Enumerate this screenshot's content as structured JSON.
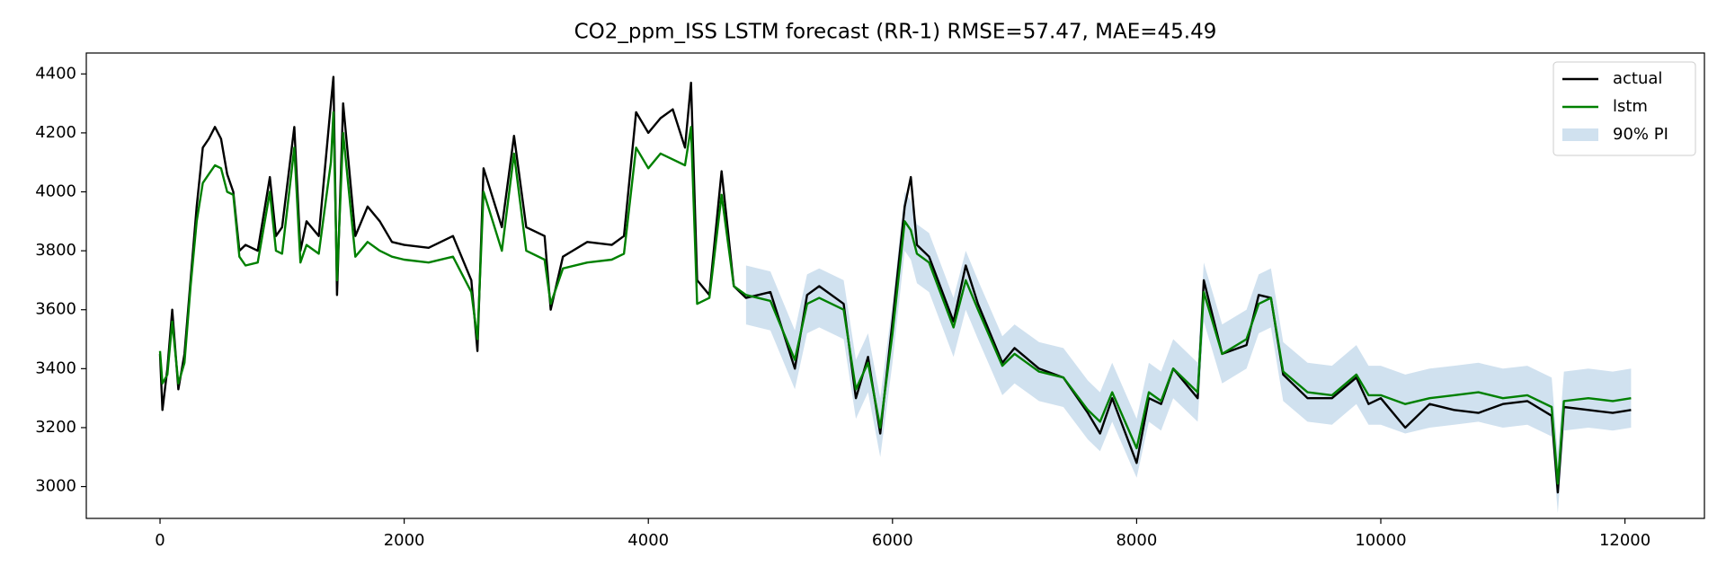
{
  "chart_data": {
    "type": "line",
    "title": "CO2_ppm_ISS LSTM forecast (RR-1)  RMSE=57.47, MAE=45.49",
    "x": [
      0,
      20,
      60,
      100,
      150,
      200,
      250,
      300,
      350,
      400,
      450,
      500,
      550,
      600,
      650,
      700,
      800,
      900,
      950,
      1000,
      1100,
      1150,
      1200,
      1300,
      1400,
      1420,
      1450,
      1500,
      1600,
      1700,
      1800,
      1900,
      2000,
      2200,
      2400,
      2550,
      2600,
      2650,
      2800,
      2900,
      3000,
      3150,
      3200,
      3300,
      3500,
      3700,
      3800,
      3900,
      4000,
      4100,
      4200,
      4300,
      4350,
      4400,
      4500,
      4600,
      4700,
      4800,
      5000,
      5200,
      5300,
      5400,
      5600,
      5700,
      5800,
      5900,
      6000,
      6100,
      6150,
      6200,
      6300,
      6500,
      6600,
      6700,
      6900,
      7000,
      7200,
      7400,
      7600,
      7700,
      7800,
      8000,
      8100,
      8200,
      8300,
      8500,
      8550,
      8700,
      8900,
      9000,
      9100,
      9200,
      9400,
      9600,
      9800,
      9900,
      10000,
      10200,
      10400,
      10600,
      10800,
      11000,
      11200,
      11400,
      11450,
      11500,
      11700,
      11900,
      12050
    ],
    "series": [
      {
        "name": "actual",
        "color": "#000000",
        "values": [
          3450,
          3260,
          3400,
          3600,
          3330,
          3450,
          3700,
          3950,
          4150,
          4180,
          4220,
          4180,
          4060,
          4000,
          3800,
          3820,
          3800,
          4050,
          3850,
          3880,
          4220,
          3800,
          3900,
          3850,
          4300,
          4390,
          3650,
          4300,
          3850,
          3950,
          3900,
          3830,
          3820,
          3810,
          3850,
          3700,
          3460,
          4080,
          3880,
          4190,
          3880,
          3850,
          3600,
          3780,
          3830,
          3820,
          3850,
          4270,
          4200,
          4250,
          4280,
          4150,
          4370,
          3700,
          3650,
          4070,
          3680,
          3640,
          3660,
          3400,
          3650,
          3680,
          3620,
          3300,
          3440,
          3180,
          3560,
          3950,
          4050,
          3820,
          3780,
          3560,
          3750,
          3620,
          3420,
          3470,
          3400,
          3370,
          3250,
          3180,
          3300,
          3080,
          3300,
          3280,
          3400,
          3300,
          3700,
          3450,
          3480,
          3650,
          3640,
          3380,
          3300,
          3300,
          3370,
          3280,
          3300,
          3200,
          3280,
          3260,
          3250,
          3280,
          3290,
          3240,
          2980,
          3270,
          3260,
          3250,
          3260
        ]
      },
      {
        "name": "lstm",
        "color": "#008000",
        "values": [
          3460,
          3350,
          3380,
          3560,
          3350,
          3420,
          3680,
          3900,
          4030,
          4060,
          4090,
          4080,
          4000,
          3990,
          3780,
          3750,
          3760,
          4000,
          3800,
          3790,
          4150,
          3760,
          3820,
          3790,
          4100,
          4270,
          3700,
          4200,
          3780,
          3830,
          3800,
          3780,
          3770,
          3760,
          3780,
          3660,
          3500,
          4000,
          3800,
          4130,
          3800,
          3770,
          3620,
          3740,
          3760,
          3770,
          3790,
          4150,
          4080,
          4130,
          4110,
          4090,
          4220,
          3620,
          3640,
          3990,
          3680,
          3650,
          3630,
          3430,
          3620,
          3640,
          3600,
          3330,
          3420,
          3200,
          3520,
          3900,
          3870,
          3790,
          3760,
          3540,
          3700,
          3600,
          3410,
          3450,
          3390,
          3370,
          3260,
          3220,
          3320,
          3130,
          3320,
          3290,
          3400,
          3320,
          3660,
          3450,
          3500,
          3620,
          3640,
          3390,
          3320,
          3310,
          3380,
          3310,
          3310,
          3280,
          3300,
          3310,
          3320,
          3300,
          3310,
          3270,
          3010,
          3290,
          3300,
          3290,
          3300
        ]
      }
    ],
    "band": {
      "name": "90% PI",
      "color": "#d0e1ef",
      "lower": [
        null,
        null,
        null,
        null,
        null,
        null,
        null,
        null,
        null,
        null,
        null,
        null,
        null,
        null,
        null,
        null,
        null,
        null,
        null,
        null,
        null,
        null,
        null,
        null,
        null,
        null,
        null,
        null,
        null,
        null,
        null,
        null,
        null,
        null,
        null,
        null,
        null,
        null,
        null,
        null,
        null,
        null,
        null,
        null,
        null,
        null,
        null,
        null,
        null,
        null,
        null,
        null,
        null,
        null,
        null,
        null,
        null,
        3550,
        3530,
        3330,
        3520,
        3540,
        3500,
        3230,
        3320,
        3100,
        3420,
        3800,
        3770,
        3690,
        3660,
        3440,
        3600,
        3500,
        3310,
        3350,
        3290,
        3270,
        3160,
        3120,
        3220,
        3030,
        3220,
        3190,
        3300,
        3220,
        3560,
        3350,
        3400,
        3520,
        3540,
        3290,
        3220,
        3210,
        3280,
        3210,
        3210,
        3180,
        3200,
        3210,
        3220,
        3200,
        3210,
        3170,
        2910,
        3190,
        3200,
        3190,
        3200
      ],
      "upper": [
        null,
        null,
        null,
        null,
        null,
        null,
        null,
        null,
        null,
        null,
        null,
        null,
        null,
        null,
        null,
        null,
        null,
        null,
        null,
        null,
        null,
        null,
        null,
        null,
        null,
        null,
        null,
        null,
        null,
        null,
        null,
        null,
        null,
        null,
        null,
        null,
        null,
        null,
        null,
        null,
        null,
        null,
        null,
        null,
        null,
        null,
        null,
        null,
        null,
        null,
        null,
        null,
        null,
        null,
        null,
        null,
        null,
        3750,
        3730,
        3530,
        3720,
        3740,
        3700,
        3430,
        3520,
        3300,
        3620,
        4000,
        3970,
        3890,
        3860,
        3640,
        3800,
        3700,
        3510,
        3550,
        3490,
        3470,
        3360,
        3320,
        3420,
        3230,
        3420,
        3390,
        3500,
        3420,
        3760,
        3550,
        3600,
        3720,
        3740,
        3490,
        3420,
        3410,
        3480,
        3410,
        3410,
        3380,
        3400,
        3410,
        3420,
        3400,
        3410,
        3370,
        3110,
        3390,
        3400,
        3390,
        3400
      ]
    },
    "xlim": [
      -604,
      12651
    ],
    "ylim": [
      2892,
      4471
    ],
    "xticks": [
      0,
      2000,
      4000,
      6000,
      8000,
      10000,
      12000
    ],
    "yticks": [
      3000,
      3200,
      3400,
      3600,
      3800,
      4000,
      4200,
      4400
    ],
    "legend": "upper right"
  }
}
